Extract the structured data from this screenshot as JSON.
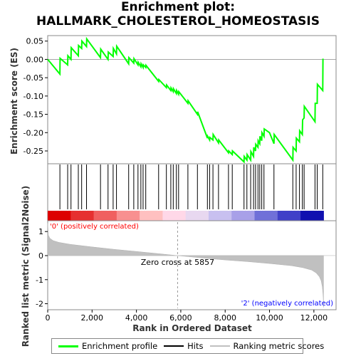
{
  "chart_data": {
    "type": "line",
    "title_line1": "Enrichment plot:",
    "title_line2": "HALLMARK_CHOLESTEROL_HOMEOSTASIS",
    "es_panel": {
      "ylabel": "Enrichment score (ES)",
      "ylim": [
        -0.285,
        0.065
      ],
      "yticks": [
        "0.05",
        "0.00",
        "-0.05",
        "-0.10",
        "-0.15",
        "-0.20",
        "-0.25"
      ],
      "ytick_values": [
        0.05,
        0.0,
        -0.05,
        -0.1,
        -0.15,
        -0.2,
        -0.25
      ],
      "series": [
        {
          "name": "Enrichment profile",
          "color": "#00ff00",
          "x": [
            0,
            550,
            560,
            900,
            910,
            1050,
            1060,
            1380,
            1390,
            1530,
            1540,
            1750,
            1760,
            2380,
            2390,
            2720,
            2730,
            2950,
            2960,
            3100,
            3110,
            3650,
            3660,
            3880,
            3890,
            4070,
            4080,
            4200,
            4210,
            4300,
            4310,
            4420,
            4430,
            5000,
            5010,
            5350,
            5360,
            5550,
            5560,
            5660,
            5670,
            5800,
            5810,
            5900,
            5910,
            6320,
            6330,
            6750,
            6760,
            7200,
            7210,
            7300,
            7310,
            7450,
            7460,
            7700,
            7710,
            8150,
            8160,
            8320,
            8330,
            8850,
            8860,
            8980,
            8990,
            9150,
            9160,
            9280,
            9290,
            9370,
            9380,
            9480,
            9490,
            9560,
            9570,
            9650,
            9660,
            9750,
            9760,
            10000,
            10200,
            10210,
            11050,
            11060,
            11200,
            11210,
            11350,
            11360,
            11480,
            11490,
            11560,
            11570,
            12050,
            12060,
            12150,
            12160,
            12400,
            12410
          ],
          "y": [
            0.0,
            -0.04,
            0.003,
            -0.015,
            0.01,
            0.0,
            0.032,
            0.01,
            0.038,
            0.03,
            0.05,
            0.035,
            0.056,
            0.005,
            0.028,
            0.0,
            0.02,
            0.008,
            0.03,
            0.015,
            0.036,
            -0.012,
            0.005,
            -0.01,
            0.002,
            -0.015,
            -0.008,
            -0.02,
            -0.012,
            -0.022,
            -0.015,
            -0.022,
            -0.016,
            -0.06,
            -0.055,
            -0.077,
            -0.07,
            -0.085,
            -0.078,
            -0.088,
            -0.08,
            -0.093,
            -0.085,
            -0.095,
            -0.088,
            -0.12,
            -0.113,
            -0.15,
            -0.143,
            -0.215,
            -0.21,
            -0.22,
            -0.213,
            -0.22,
            -0.205,
            -0.228,
            -0.22,
            -0.255,
            -0.25,
            -0.26,
            -0.25,
            -0.28,
            -0.265,
            -0.275,
            -0.26,
            -0.275,
            -0.252,
            -0.265,
            -0.24,
            -0.25,
            -0.232,
            -0.24,
            -0.222,
            -0.23,
            -0.21,
            -0.222,
            -0.2,
            -0.21,
            -0.19,
            -0.2,
            -0.23,
            -0.205,
            -0.275,
            -0.24,
            -0.25,
            -0.215,
            -0.225,
            -0.195,
            -0.205,
            -0.165,
            -0.16,
            -0.128,
            -0.17,
            -0.12,
            -0.12,
            -0.068,
            -0.085,
            0.002
          ]
        }
      ]
    },
    "hits_panel": {
      "legend": "Hits",
      "positions": [
        550,
        900,
        1050,
        1380,
        1530,
        1750,
        2380,
        2720,
        2950,
        3100,
        3650,
        3880,
        4070,
        4200,
        4300,
        4420,
        5000,
        5350,
        5550,
        5660,
        5800,
        5900,
        6320,
        6750,
        7200,
        7300,
        7450,
        7700,
        8150,
        8320,
        8850,
        8980,
        9150,
        9280,
        9370,
        9480,
        9560,
        9650,
        9750,
        10200,
        11050,
        11200,
        11350,
        11480,
        11560,
        12050,
        12150,
        12400
      ],
      "color_bar": [
        "#dd0000",
        "#e63030",
        "#f06060",
        "#f89090",
        "#ffc0c0",
        "#ffd8e8",
        "#e8d8f0",
        "#c8c0f0",
        "#a8a0e8",
        "#7070d8",
        "#4040c8",
        "#1010b0"
      ]
    },
    "metric_panel": {
      "ylabel": "Ranked list metric (Signal2Noise)",
      "xlabel": "Rank in Ordered Dataset",
      "ylim": [
        -2.25,
        1.45
      ],
      "yticks": [
        "1",
        "0",
        "-1",
        "-2"
      ],
      "ytick_values": [
        1,
        0,
        -1,
        -2
      ],
      "xlim": [
        0,
        13000
      ],
      "xticks": [
        "0",
        "2,000",
        "4,000",
        "6,000",
        "8,000",
        "10,000",
        "12,000"
      ],
      "xtick_values": [
        0,
        2000,
        4000,
        6000,
        8000,
        10000,
        12000
      ],
      "zero_cross": 5857,
      "zero_cross_label": "Zero cross at 5857",
      "pos_label": "'0' (positively correlated)",
      "neg_label": "'2' (negatively correlated)",
      "pos_label_color": "#ff0000",
      "neg_label_color": "#0000ff",
      "n_genes": 12435,
      "profile_x": [
        0,
        30,
        100,
        250,
        500,
        1000,
        2000,
        3000,
        4000,
        5000,
        5857,
        7000,
        8000,
        9000,
        10000,
        11000,
        11500,
        11900,
        12100,
        12250,
        12330,
        12380,
        12420,
        12435
      ],
      "profile_y": [
        1.35,
        0.85,
        0.72,
        0.62,
        0.55,
        0.47,
        0.36,
        0.26,
        0.17,
        0.08,
        0.0,
        -0.1,
        -0.18,
        -0.25,
        -0.33,
        -0.42,
        -0.5,
        -0.6,
        -0.72,
        -0.88,
        -1.05,
        -1.3,
        -1.7,
        -2.15
      ]
    },
    "legend_items": [
      {
        "label": "Enrichment profile",
        "color": "#00ff00"
      },
      {
        "label": "Hits",
        "color": "#000000"
      },
      {
        "label": "Ranking metric scores",
        "color": "#c0c0c0"
      }
    ]
  }
}
